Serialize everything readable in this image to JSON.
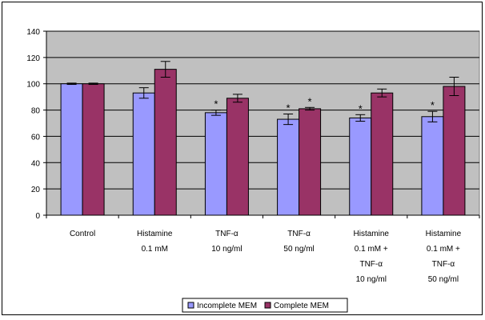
{
  "chart_data": {
    "type": "bar",
    "title": "",
    "xlabel": "",
    "ylabel": "",
    "ylim": [
      0,
      140
    ],
    "yticks": [
      0,
      20,
      40,
      60,
      80,
      100,
      120,
      140
    ],
    "categories": [
      [
        "Control"
      ],
      [
        "Histamine",
        "0.1 mM"
      ],
      [
        "TNF-α",
        "10 ng/ml"
      ],
      [
        "TNF-α",
        "50 ng/ml"
      ],
      [
        "Histamine",
        "0.1 mM +",
        "TNF-α",
        "10 ng/ml"
      ],
      [
        "Histamine",
        "0.1 mM +",
        "TNF-α",
        "50 ng/ml"
      ]
    ],
    "series": [
      {
        "name": "Incomplete MEM",
        "color": "#9999ff",
        "values": [
          100,
          93,
          78,
          73,
          74,
          75
        ],
        "errors": [
          0.5,
          4,
          2,
          4,
          2.5,
          4
        ],
        "significant": [
          false,
          false,
          true,
          true,
          true,
          true
        ]
      },
      {
        "name": "Complete MEM",
        "color": "#993366",
        "values": [
          100,
          111,
          89,
          81,
          93,
          98
        ],
        "errors": [
          0.5,
          6,
          3,
          1,
          3,
          7
        ],
        "significant": [
          false,
          false,
          false,
          true,
          false,
          false
        ]
      }
    ],
    "significance_marker": "*",
    "grid": true,
    "plot_background": "#c0c0c0",
    "legend_position": "bottom"
  }
}
